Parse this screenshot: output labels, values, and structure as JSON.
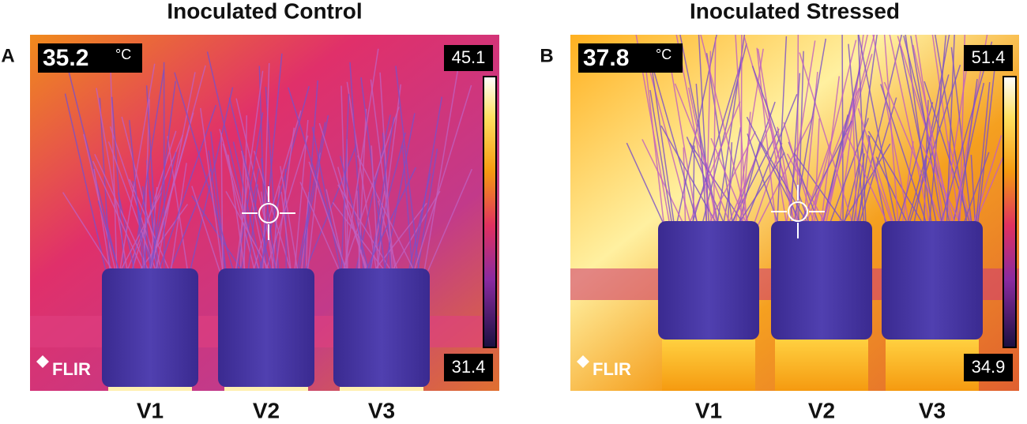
{
  "panels": [
    {
      "label": "A",
      "title": "Inoculated Control",
      "spot_temperature": 35.2,
      "unit": "°C",
      "scale_max": 45.1,
      "scale_min": 31.4,
      "brand": "FLIR",
      "pots": [
        "V1",
        "V2",
        "V3"
      ]
    },
    {
      "label": "B",
      "title": "Inoculated Stressed",
      "spot_temperature": 37.8,
      "unit": "°C",
      "scale_max": 51.4,
      "scale_min": 34.9,
      "brand": "FLIR",
      "pots": [
        "V1",
        "V2",
        "V3"
      ]
    }
  ]
}
